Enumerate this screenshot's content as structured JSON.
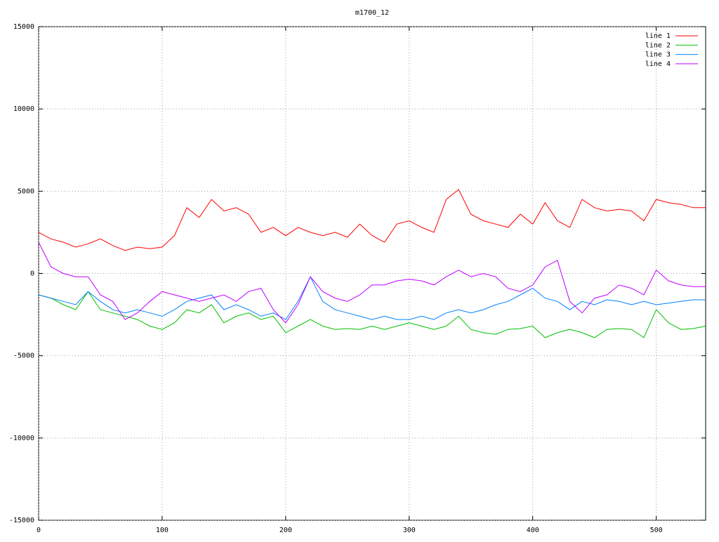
{
  "chart_data": {
    "type": "line",
    "title": "m1700_12",
    "x": [
      0,
      10,
      20,
      30,
      40,
      50,
      60,
      70,
      80,
      90,
      100,
      110,
      120,
      130,
      140,
      150,
      160,
      170,
      180,
      190,
      200,
      210,
      220,
      230,
      240,
      250,
      260,
      270,
      280,
      290,
      300,
      310,
      320,
      330,
      340,
      350,
      360,
      370,
      380,
      390,
      400,
      410,
      420,
      430,
      440,
      450,
      460,
      470,
      480,
      490,
      500,
      510,
      520,
      530,
      540
    ],
    "xlim": [
      0,
      540
    ],
    "xticks": [
      0,
      100,
      200,
      300,
      400,
      500
    ],
    "ylim": [
      -15000,
      15000
    ],
    "yticks": [
      -15000,
      -10000,
      -5000,
      0,
      5000,
      10000,
      15000
    ],
    "grid": true,
    "legend": "top-right",
    "series": [
      {
        "name": "line 1",
        "color": "#ff0000",
        "values": [
          2500,
          2100,
          1900,
          1600,
          1800,
          2100,
          1700,
          1400,
          1600,
          1500,
          1600,
          2300,
          4000,
          3400,
          4500,
          3800,
          4000,
          3600,
          2500,
          2800,
          2300,
          2800,
          2500,
          2300,
          2500,
          2200,
          3000,
          2300,
          1900,
          3000,
          3200,
          2800,
          2500,
          4500,
          5100,
          3600,
          3200,
          3000,
          2800,
          3600,
          3000,
          4300,
          3200,
          2800,
          4500,
          4000,
          3800,
          3900,
          3800,
          3200,
          4500,
          4300,
          4200,
          4000,
          4000
        ]
      },
      {
        "name": "line 2",
        "color": "#00c000",
        "values": [
          -1300,
          -1500,
          -1900,
          -2200,
          -1100,
          -2200,
          -2400,
          -2600,
          -2800,
          -3200,
          -3400,
          -3000,
          -2200,
          -2400,
          -1900,
          -3000,
          -2600,
          -2400,
          -2800,
          -2600,
          -3600,
          -3200,
          -2800,
          -3200,
          -3400,
          -3350,
          -3400,
          -3200,
          -3400,
          -3200,
          -3000,
          -3200,
          -3400,
          -3200,
          -2600,
          -3400,
          -3600,
          -3700,
          -3400,
          -3350,
          -3200,
          -3900,
          -3600,
          -3400,
          -3600,
          -3900,
          -3400,
          -3350,
          -3400,
          -3900,
          -2200,
          -3000,
          -3400,
          -3350,
          -3200
        ]
      },
      {
        "name": "line 3",
        "color": "#0080ff",
        "values": [
          -1300,
          -1500,
          -1700,
          -1900,
          -1100,
          -1700,
          -2200,
          -2400,
          -2200,
          -2400,
          -2600,
          -2200,
          -1700,
          -1500,
          -1300,
          -2200,
          -1900,
          -2200,
          -2600,
          -2400,
          -2800,
          -1700,
          -200,
          -1700,
          -2200,
          -2400,
          -2600,
          -2800,
          -2600,
          -2800,
          -2800,
          -2600,
          -2800,
          -2400,
          -2200,
          -2400,
          -2200,
          -1900,
          -1700,
          -1300,
          -900,
          -1500,
          -1700,
          -2200,
          -1700,
          -1900,
          -1600,
          -1700,
          -1900,
          -1700,
          -1900,
          -1800,
          -1700,
          -1600,
          -1600
        ]
      },
      {
        "name": "line 4",
        "color": "#c000ff",
        "values": [
          1900,
          400,
          0,
          -200,
          -200,
          -1300,
          -1700,
          -2800,
          -2400,
          -1700,
          -1100,
          -1300,
          -1500,
          -1700,
          -1500,
          -1300,
          -1700,
          -1100,
          -900,
          -2200,
          -3000,
          -1900,
          -200,
          -1100,
          -1500,
          -1700,
          -1300,
          -700,
          -700,
          -450,
          -350,
          -450,
          -700,
          -200,
          200,
          -200,
          0,
          -200,
          -900,
          -1100,
          -700,
          400,
          800,
          -1700,
          -2400,
          -1500,
          -1300,
          -700,
          -900,
          -1300,
          200,
          -450,
          -700,
          -800,
          -800
        ]
      }
    ]
  }
}
